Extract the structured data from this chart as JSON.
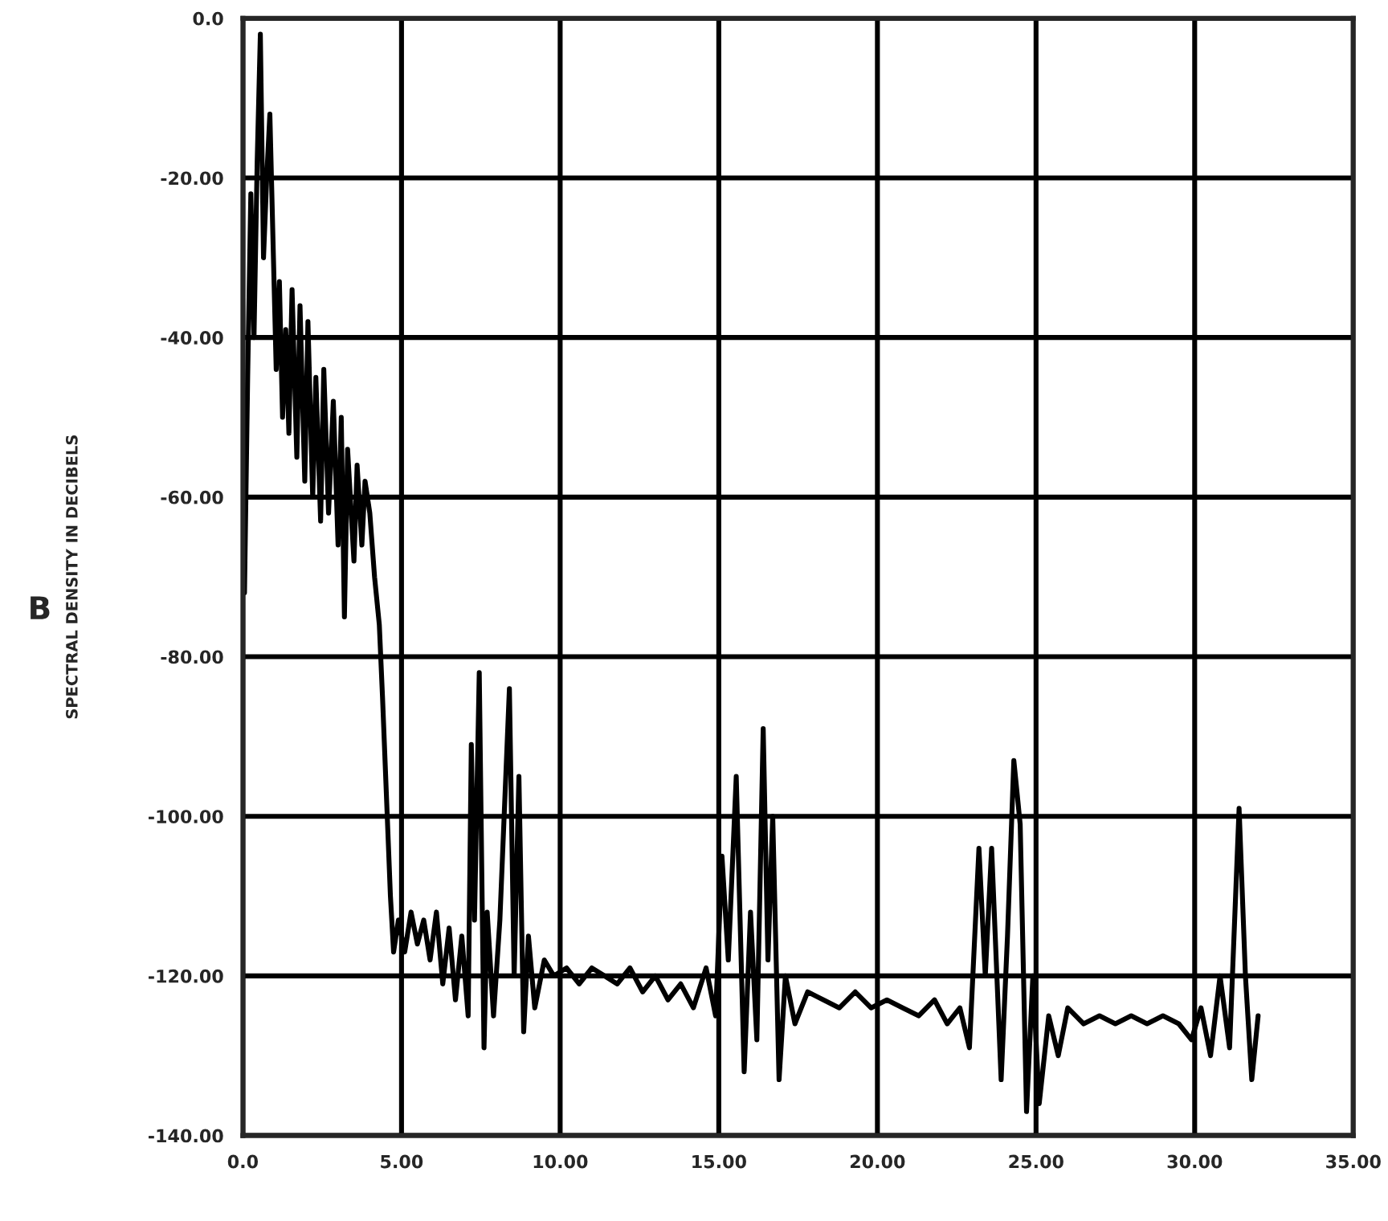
{
  "chart_data": {
    "type": "line",
    "ylabel": "SPECTRAL DENSITY IN DECIBELS",
    "annotations": [
      "B"
    ],
    "xlim": [
      0,
      35
    ],
    "ylim": [
      -140,
      0
    ],
    "xticks": [
      {
        "value": 0,
        "label": "0.0"
      },
      {
        "value": 5,
        "label": "5.00"
      },
      {
        "value": 10,
        "label": "10.00"
      },
      {
        "value": 15,
        "label": "15.00"
      },
      {
        "value": 20,
        "label": "20.00"
      },
      {
        "value": 25,
        "label": "25.00"
      },
      {
        "value": 30,
        "label": "30.00"
      },
      {
        "value": 35,
        "label": "35.00"
      }
    ],
    "yticks": [
      {
        "value": 0,
        "label": "0.0"
      },
      {
        "value": -20,
        "label": "-20.00"
      },
      {
        "value": -40,
        "label": "-40.00"
      },
      {
        "value": -60,
        "label": "-60.00"
      },
      {
        "value": -80,
        "label": "-80.00"
      },
      {
        "value": -100,
        "label": "-100.00"
      },
      {
        "value": -120,
        "label": "-120.00"
      },
      {
        "value": -140,
        "label": "-140.00"
      }
    ],
    "grid": true,
    "series": [
      {
        "color": "#000000",
        "x": [
          0.05,
          0.15,
          0.25,
          0.35,
          0.45,
          0.55,
          0.65,
          0.75,
          0.85,
          0.95,
          1.05,
          1.15,
          1.25,
          1.35,
          1.45,
          1.55,
          1.7,
          1.8,
          1.95,
          2.05,
          2.2,
          2.3,
          2.45,
          2.55,
          2.7,
          2.85,
          3.0,
          3.1,
          3.2,
          3.3,
          3.5,
          3.6,
          3.75,
          3.85,
          4.0,
          4.15,
          4.3,
          4.4,
          4.55,
          4.65,
          4.75,
          4.9,
          5.1,
          5.3,
          5.5,
          5.7,
          5.9,
          6.1,
          6.3,
          6.5,
          6.7,
          6.9,
          7.1,
          7.2,
          7.3,
          7.45,
          7.6,
          7.7,
          7.9,
          8.1,
          8.4,
          8.55,
          8.7,
          8.85,
          9.0,
          9.2,
          9.5,
          9.8,
          10.2,
          10.6,
          11.0,
          11.4,
          11.8,
          12.2,
          12.6,
          13.0,
          13.4,
          13.8,
          14.2,
          14.6,
          14.9,
          15.1,
          15.3,
          15.55,
          15.8,
          16.0,
          16.2,
          16.4,
          16.55,
          16.7,
          16.9,
          17.1,
          17.4,
          17.8,
          18.3,
          18.8,
          19.3,
          19.8,
          20.3,
          20.8,
          21.3,
          21.8,
          22.2,
          22.6,
          22.9,
          23.2,
          23.4,
          23.6,
          23.9,
          24.1,
          24.3,
          24.5,
          24.7,
          24.9,
          25.1,
          25.4,
          25.7,
          26.0,
          26.5,
          27.0,
          27.5,
          28.0,
          28.5,
          29.0,
          29.5,
          29.9,
          30.2,
          30.5,
          30.8,
          31.1,
          31.4,
          31.6,
          31.8,
          32.0
        ],
        "values": [
          -72,
          -45,
          -22,
          -40,
          -18,
          -2,
          -30,
          -20,
          -12,
          -28,
          -44,
          -33,
          -50,
          -39,
          -52,
          -34,
          -55,
          -36,
          -58,
          -38,
          -60,
          -45,
          -63,
          -44,
          -62,
          -48,
          -66,
          -50,
          -75,
          -54,
          -68,
          -56,
          -66,
          -58,
          -62,
          -70,
          -76,
          -85,
          -100,
          -110,
          -117,
          -113,
          -117,
          -112,
          -116,
          -113,
          -118,
          -112,
          -121,
          -114,
          -123,
          -115,
          -125,
          -91,
          -113,
          -82,
          -129,
          -112,
          -125,
          -113,
          -84,
          -120,
          -95,
          -127,
          -115,
          -124,
          -118,
          -120,
          -119,
          -121,
          -119,
          -120,
          -121,
          -119,
          -122,
          -120,
          -123,
          -121,
          -124,
          -119,
          -125,
          -105,
          -118,
          -95,
          -132,
          -112,
          -128,
          -89,
          -118,
          -100,
          -133,
          -120,
          -126,
          -122,
          -123,
          -124,
          -122,
          -124,
          -123,
          -124,
          -125,
          -123,
          -126,
          -124,
          -129,
          -104,
          -120,
          -104,
          -133,
          -115,
          -93,
          -101,
          -137,
          -120,
          -136,
          -125,
          -130,
          -124,
          -126,
          -125,
          -126,
          -125,
          -126,
          -125,
          -126,
          -128,
          -124,
          -130,
          -120,
          -129,
          -99,
          -120,
          -133,
          -125
        ]
      }
    ]
  }
}
